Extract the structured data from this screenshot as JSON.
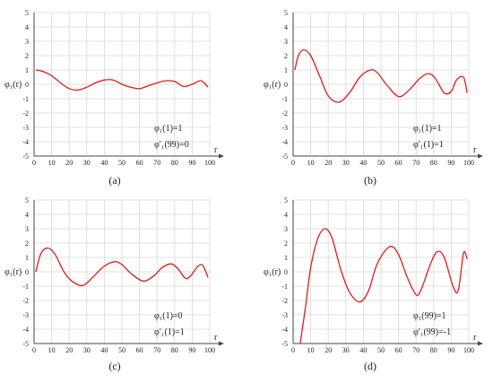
{
  "chart_data": [
    {
      "type": "line",
      "panel_label": "(a)",
      "ylabel": "φ₁(r)",
      "xlabel": "r",
      "xlim": [
        0,
        100
      ],
      "ylim": [
        -5,
        5
      ],
      "x_ticks": [
        0,
        10,
        20,
        30,
        40,
        50,
        60,
        70,
        80,
        90,
        100
      ],
      "y_ticks": [
        -5,
        -4,
        -3,
        -2,
        -1,
        0,
        1,
        2,
        3,
        4,
        5
      ],
      "grid": true,
      "annotations": [
        "φ₁(1)=1",
        "φ′₁(99)=0"
      ],
      "series": [
        {
          "color": "#e31a1c",
          "x": [
            1,
            5,
            10,
            15,
            20,
            25,
            30,
            35,
            40,
            45,
            50,
            55,
            60,
            65,
            70,
            75,
            80,
            85,
            90,
            95,
            99
          ],
          "y": [
            1.0,
            0.9,
            0.6,
            0.1,
            -0.3,
            -0.4,
            -0.2,
            0.1,
            0.3,
            0.3,
            0.0,
            -0.2,
            -0.3,
            -0.1,
            0.1,
            0.25,
            0.2,
            -0.15,
            0.0,
            0.25,
            -0.2
          ]
        }
      ]
    },
    {
      "type": "line",
      "panel_label": "(b)",
      "ylabel": "φ₁(r)",
      "xlabel": "r",
      "xlim": [
        0,
        100
      ],
      "ylim": [
        -5,
        5
      ],
      "x_ticks": [
        0,
        10,
        20,
        30,
        40,
        50,
        60,
        70,
        80,
        90,
        100
      ],
      "y_ticks": [
        -5,
        -4,
        -3,
        -2,
        -1,
        0,
        1,
        2,
        3,
        4,
        5
      ],
      "grid": true,
      "annotations": [
        "φ₁(1)=1",
        "φ′₁(1)=1"
      ],
      "series": [
        {
          "color": "#e31a1c",
          "x": [
            1,
            3,
            6,
            10,
            15,
            20,
            26,
            32,
            38,
            44,
            48,
            53,
            60,
            66,
            72,
            77,
            81,
            86,
            90,
            93,
            97,
            99
          ],
          "y": [
            1.0,
            2.0,
            2.4,
            2.0,
            0.6,
            -0.8,
            -1.25,
            -0.6,
            0.5,
            1.0,
            0.8,
            0.0,
            -0.85,
            -0.4,
            0.4,
            0.75,
            0.4,
            -0.6,
            -0.5,
            0.3,
            0.5,
            -0.6
          ]
        }
      ]
    },
    {
      "type": "line",
      "panel_label": "(c)",
      "ylabel": "φ₁(r)",
      "xlabel": "r",
      "xlim": [
        0,
        100
      ],
      "ylim": [
        -5,
        5
      ],
      "x_ticks": [
        0,
        10,
        20,
        30,
        40,
        50,
        60,
        70,
        80,
        90,
        100
      ],
      "y_ticks": [
        -5,
        -4,
        -3,
        -2,
        -1,
        0,
        1,
        2,
        3,
        4,
        5
      ],
      "grid": true,
      "annotations": [
        "φ₁(1)=0",
        "φ′₁(1)=1"
      ],
      "series": [
        {
          "color": "#e31a1c",
          "x": [
            1,
            4,
            8,
            12,
            17,
            22,
            28,
            34,
            40,
            46,
            50,
            55,
            62,
            68,
            73,
            78,
            82,
            86,
            89,
            93,
            96,
            99
          ],
          "y": [
            0.0,
            1.3,
            1.65,
            1.2,
            0.0,
            -0.7,
            -0.95,
            -0.3,
            0.4,
            0.7,
            0.5,
            -0.1,
            -0.65,
            -0.3,
            0.3,
            0.55,
            0.2,
            -0.45,
            -0.3,
            0.35,
            0.45,
            -0.4
          ]
        }
      ]
    },
    {
      "type": "line",
      "panel_label": "(d)",
      "ylabel": "φ₁(r)",
      "xlabel": "r",
      "xlim": [
        0,
        100
      ],
      "ylim": [
        -5,
        5
      ],
      "x_ticks": [
        0,
        10,
        20,
        30,
        40,
        50,
        60,
        70,
        80,
        90,
        100
      ],
      "y_ticks": [
        -5,
        -4,
        -3,
        -2,
        -1,
        0,
        1,
        2,
        3,
        4,
        5
      ],
      "grid": true,
      "annotations": [
        "φ₁(99)=1",
        "φ′₁(99)=-1"
      ],
      "series": [
        {
          "color": "#e31a1c",
          "x": [
            4,
            7,
            10,
            14,
            18,
            22,
            27,
            32,
            38,
            43,
            48,
            55,
            60,
            65,
            70,
            73,
            78,
            82,
            86,
            91,
            94,
            97,
            99
          ],
          "y": [
            -5.0,
            -2.5,
            0.3,
            2.3,
            3.0,
            2.4,
            0.2,
            -1.4,
            -2.1,
            -1.3,
            0.6,
            1.75,
            1.2,
            -0.4,
            -1.6,
            -1.2,
            0.5,
            1.4,
            1.0,
            -1.0,
            -1.3,
            1.3,
            0.9
          ]
        }
      ]
    }
  ]
}
